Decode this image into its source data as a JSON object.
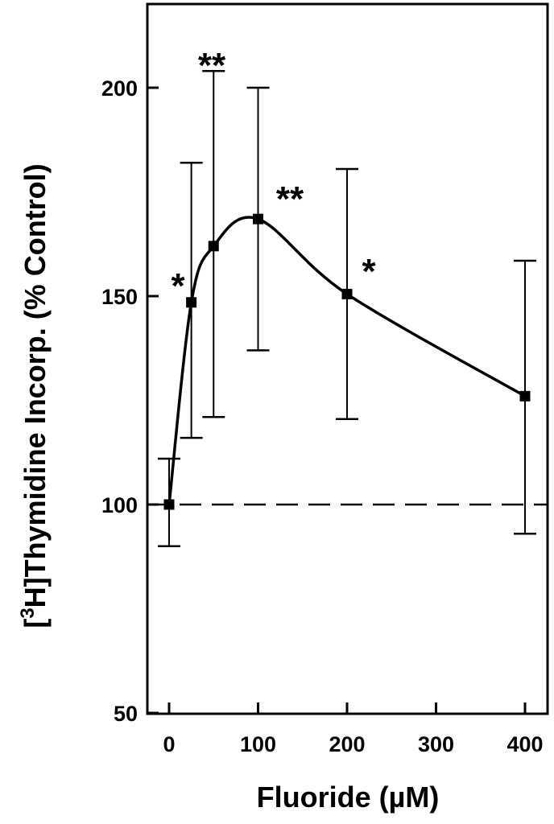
{
  "chart_data": {
    "type": "line",
    "title": "",
    "xlabel": "Fluoride  (µM)",
    "ylabel_prefix": "[",
    "ylabel_sup": "3",
    "ylabel_rest": "H]Thymidine Incorp. (% Control)",
    "xlim": [
      -25,
      430
    ],
    "ylim": [
      50,
      220
    ],
    "xticks": [
      0,
      100,
      200,
      300,
      400
    ],
    "xtick_labels": [
      "0",
      "100",
      "200",
      "300",
      "400"
    ],
    "yticks": [
      50,
      100,
      150,
      200
    ],
    "ytick_labels": [
      "50",
      "100",
      "150",
      "200"
    ],
    "grid": false,
    "reference_line": {
      "y": 100,
      "style": "dashed"
    },
    "series": [
      {
        "x": [
          0,
          25,
          50,
          100,
          200,
          400
        ],
        "y": [
          100,
          148.5,
          162,
          168.5,
          150.5,
          126
        ],
        "err_low": [
          90,
          116,
          121,
          137,
          120.5,
          93
        ],
        "err_high": [
          111,
          182,
          204,
          200,
          180.5,
          158.5
        ],
        "significance": [
          "",
          "*",
          "**",
          "**",
          "*",
          ""
        ]
      }
    ]
  }
}
